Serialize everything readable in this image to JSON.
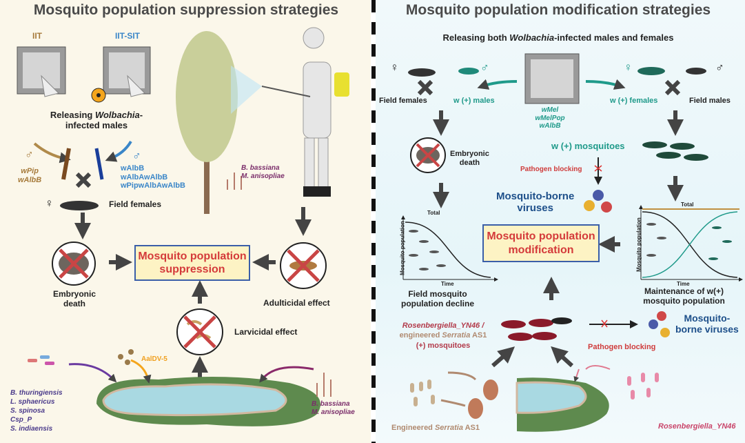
{
  "left": {
    "title": "Mosquito population suppression strategies",
    "iit": "IIT",
    "iit_sit": "IIT-SIT",
    "releasing_1": "Releasing ",
    "releasing_w": "Wolbachia",
    "releasing_2": "-",
    "releasing_3": "infected males",
    "male_symbol": "♂",
    "female_symbol": "♀",
    "brown_strains": [
      "wPip",
      "wAlbB"
    ],
    "blue_strains": [
      "wAlbB",
      "wAlbAwAlbB",
      "wPipwAlbAwAlbB"
    ],
    "field_females": "Field females",
    "embryonic_death": "Embryonic\ndeath",
    "center_box": "Mosquito population suppression",
    "adulticidal": "Adulticidal effect",
    "larvicidal": "Larvicidal effect",
    "fungi": [
      "B. bassiana",
      "M. anisopliae"
    ],
    "virus": "AalDV-5",
    "bacteria": [
      "B. thuringiensis",
      "L. sphaericus",
      "S. spinosa",
      "Csp_P",
      "S. indiaensis"
    ],
    "fungi_bottom": [
      "B. bassiana",
      "M. anisopliae"
    ]
  },
  "right": {
    "title": "Mosquito population modification strategies",
    "releasing_1": "Releasing both ",
    "releasing_w": "Wolbachia",
    "releasing_2": "-infected males and females",
    "field_females": "Field females",
    "w_males": "w (+) males",
    "strains": [
      "wMel",
      "wMelPop",
      "wAlbB"
    ],
    "w_females": "w (+) females",
    "field_males": "Field males",
    "embryonic_death": "Embryonic\ndeath",
    "w_mosquitoes": "w (+) mosquitoes",
    "pathogen_blocking": "Pathogen blocking",
    "viruses": "Mosquito-borne\nviruses",
    "chart_total": "Total",
    "chart_ylabel": "Mosquito population",
    "chart_xlabel": "Time",
    "left_chart_caption": "Field mosquito\npopulation decline",
    "center_box": "Mosquito population modification",
    "right_chart_caption": "Maintenance of w(+)\nmosquito population",
    "rosen_line1": "Rosenbergiella_YN46 /",
    "rosen_line2a": "engineered ",
    "rosen_line2b": "Serratia",
    " rosen_line2c": " AS1",
    "rosen_line3": "(+) mosquitoes",
    "pathogen_blocking_2": "Pathogen blocking",
    "viruses_2": "Mosquito-\nborne viruses",
    "engineered_1": "Engineered ",
    "engineered_2": "Serratia",
    "engineered_3": " AS1",
    "rosen_bottom": "Rosenbergiella_YN46"
  },
  "colors": {
    "left_bg": "#fbf7ea",
    "right_bg": "#e6f5f9",
    "box_fill": "#fdf3c4",
    "box_border": "#3a5ea8",
    "box_text": "#d43a3a",
    "teal": "#1f9a8a",
    "red_cross": "#c94545",
    "arrow": "#444444"
  }
}
